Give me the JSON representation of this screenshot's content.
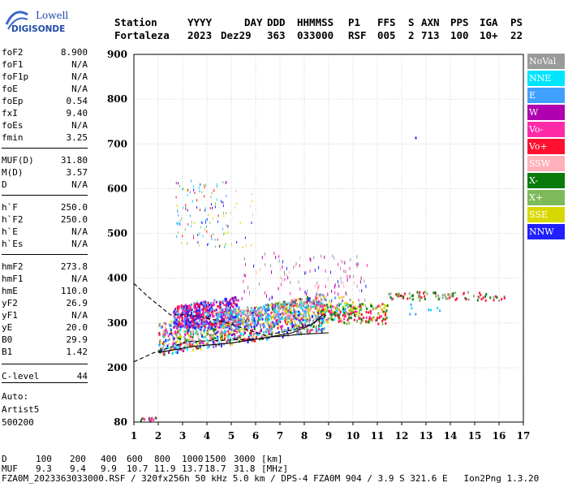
{
  "logo": {
    "line1": "Lowell",
    "line2": "DIGISONDE"
  },
  "header": {
    "labels": [
      "Station",
      "YYYY",
      "DAY",
      "DDD",
      "HHMMSS",
      "P1",
      "FFS",
      "S",
      "AXN",
      "PPS",
      "IGA",
      "PS"
    ],
    "values": [
      "Fortaleza",
      "2023",
      "Dez29",
      "363",
      "033000",
      "RSF",
      "005",
      "2",
      "713",
      "100",
      "10+",
      "22"
    ]
  },
  "params": [
    {
      "label": "foF2",
      "value": "8.900"
    },
    {
      "label": "foF1",
      "value": "N/A"
    },
    {
      "label": "foF1p",
      "value": "N/A"
    },
    {
      "label": "foE",
      "value": "N/A"
    },
    {
      "label": "foEp",
      "value": "0.54"
    },
    {
      "label": "fxI",
      "value": "9.40"
    },
    {
      "label": "foEs",
      "value": "N/A"
    },
    {
      "label": "fmin",
      "value": "3.25"
    },
    {
      "label": "MUF(D)",
      "value": "31.80"
    },
    {
      "label": "M(D)",
      "value": "3.57"
    },
    {
      "label": "D",
      "value": "N/A"
    },
    {
      "label": "h`F",
      "value": "250.0"
    },
    {
      "label": "h`F2",
      "value": "250.0"
    },
    {
      "label": "h`E",
      "value": "N/A"
    },
    {
      "label": "h`Es",
      "value": "N/A"
    },
    {
      "label": "hmF2",
      "value": "273.8"
    },
    {
      "label": "hmF1",
      "value": "N/A"
    },
    {
      "label": "hmE",
      "value": "110.0"
    },
    {
      "label": "yF2",
      "value": "26.9"
    },
    {
      "label": "yF1",
      "value": "N/A"
    },
    {
      "label": "yE",
      "value": "20.0"
    },
    {
      "label": "B0",
      "value": "29.9"
    },
    {
      "label": "B1",
      "value": "1.42"
    },
    {
      "label": "C-level",
      "value": "44"
    }
  ],
  "auto": [
    "Auto:",
    "Artist5",
    "500200"
  ],
  "legend": [
    {
      "label": "NoVal",
      "color": "#9a9a9a"
    },
    {
      "label": "NNE",
      "color": "#00e5ff"
    },
    {
      "label": "E",
      "color": "#3fa0ff"
    },
    {
      "label": "W",
      "color": "#b000b0"
    },
    {
      "label": "Vo-",
      "color": "#ff2aa8"
    },
    {
      "label": "Vo+",
      "color": "#ff1030"
    },
    {
      "label": "SSW",
      "color": "#ffb0b8"
    },
    {
      "label": "X-",
      "color": "#0a7a0a"
    },
    {
      "label": "X+",
      "color": "#7dbb5a"
    },
    {
      "label": "SSE",
      "color": "#d8d800"
    },
    {
      "label": "NNW",
      "color": "#2020ff"
    }
  ],
  "chart_data": {
    "type": "scatter",
    "xlim": [
      1,
      17
    ],
    "ylim": [
      80,
      900
    ],
    "x_ticks": [
      "1",
      "2",
      "3",
      "4",
      "5",
      "6",
      "7",
      "8",
      "9",
      "10",
      "11",
      "12",
      "13",
      "14",
      "15",
      "16",
      "17"
    ],
    "y_ticks": [
      "80",
      "200",
      "300",
      "400",
      "500",
      "600",
      "700",
      "800",
      "900"
    ],
    "grid": true,
    "traces": [
      {
        "style": "dashed",
        "points": [
          [
            1,
            388
          ],
          [
            1.6,
            358
          ],
          [
            2.5,
            318
          ],
          [
            3.3,
            318
          ],
          [
            4.6,
            304
          ],
          [
            6.4,
            272
          ],
          [
            7.6,
            285
          ],
          [
            8.4,
            300
          ],
          [
            8.9,
            318
          ]
        ]
      },
      {
        "style": "dashed",
        "points": [
          [
            1,
            213
          ],
          [
            1.8,
            233
          ],
          [
            3.2,
            258
          ],
          [
            5,
            262
          ],
          [
            6.5,
            265
          ]
        ]
      },
      {
        "style": "solid",
        "points": [
          [
            2,
            234
          ],
          [
            3.5,
            248
          ],
          [
            5,
            255
          ],
          [
            6.5,
            268
          ],
          [
            7.5,
            278
          ],
          [
            8.3,
            296
          ],
          [
            8.8,
            320
          ]
        ]
      },
      {
        "style": "solid",
        "points": [
          [
            6.5,
            268
          ],
          [
            8,
            275
          ],
          [
            9,
            278
          ]
        ]
      }
    ]
  },
  "footer": {
    "d_label": "D",
    "d_values": [
      "100",
      "200",
      "400",
      "600",
      "800",
      "1000",
      "1500",
      "3000"
    ],
    "d_unit": "[km]",
    "muf_label": "MUF",
    "muf_values": [
      "9.3",
      "9.4",
      "9.9",
      "10.7",
      "11.9",
      "13.7",
      "18.7",
      "31.8"
    ],
    "muf_unit": "[MHz]",
    "info": "FZA0M_2023363033000.RSF / 320fx256h 50 kHz 5.0 km / DPS-4 FZA0M 904 / 3.9 S 321.6 E   Ion2Png 1.3.20"
  }
}
